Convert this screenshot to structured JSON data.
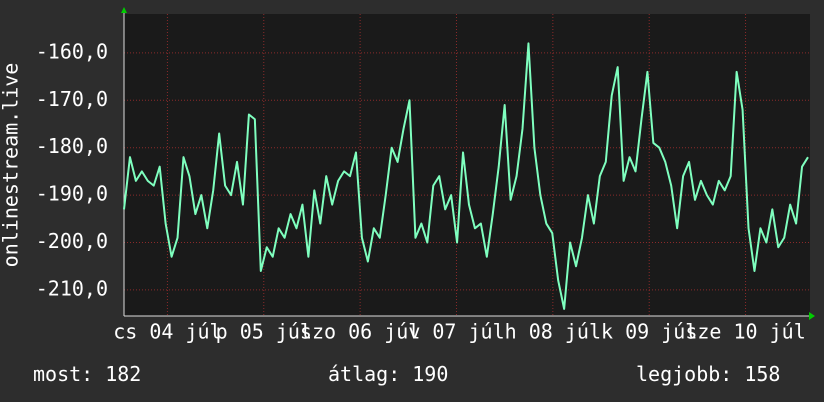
{
  "chart_data": {
    "type": "line",
    "y_label": "onlinestream.live",
    "color": "#7fffbf",
    "grid": true,
    "xlim": [
      0,
      115
    ],
    "xticks": [
      {
        "value": 7.3,
        "label": "cs 04 júl"
      },
      {
        "value": 23.5,
        "label": "p 05 júl"
      },
      {
        "value": 39.7,
        "label": "szo 06 júl"
      },
      {
        "value": 55.9,
        "label": "v 07 júl"
      },
      {
        "value": 72.1,
        "label": "h 08 júl"
      },
      {
        "value": 88.3,
        "label": "k 09 júl"
      },
      {
        "value": 104.5,
        "label": "sze 10 júl"
      }
    ],
    "ylim": [
      -215.5,
      -151.8
    ],
    "yticks": [
      {
        "value": -160,
        "label": "-160,0"
      },
      {
        "value": -170,
        "label": "-170,0"
      },
      {
        "value": -180,
        "label": "-180,0"
      },
      {
        "value": -190,
        "label": "-190,0"
      },
      {
        "value": -200,
        "label": "-200,0"
      },
      {
        "value": -210,
        "label": "-210,0"
      }
    ],
    "values": [
      -193,
      -182,
      -187,
      -185,
      -187,
      -188,
      -184,
      -196,
      -203,
      -199,
      -182,
      -186,
      -194,
      -190,
      -197,
      -189,
      -177,
      -188,
      -190,
      -183,
      -192,
      -173,
      -174,
      -206,
      -201,
      -203,
      -197,
      -199,
      -194,
      -197,
      -192,
      -203,
      -189,
      -196,
      -186,
      -192,
      -187,
      -185,
      -186,
      -181,
      -199,
      -204,
      -197,
      -199,
      -190,
      -180,
      -183,
      -176,
      -170,
      -199,
      -196,
      -200,
      -188,
      -186,
      -193,
      -190,
      -200,
      -181,
      -192,
      -197,
      -196,
      -203,
      -194,
      -184,
      -171,
      -191,
      -186,
      -176,
      -158,
      -180,
      -190,
      -196,
      -198,
      -208,
      -214,
      -200,
      -205,
      -199,
      -190,
      -196,
      -186,
      -183,
      -169,
      -163,
      -187,
      -182,
      -185,
      -174,
      -164,
      -179,
      -180,
      -183,
      -188,
      -197,
      -186,
      -183,
      -191,
      -187,
      -190,
      -192,
      -187,
      -189,
      -186,
      -164,
      -172,
      -197,
      -206,
      -197,
      -200,
      -193,
      -201,
      -199,
      -192,
      -196,
      -184,
      -182
    ],
    "stats": [
      {
        "label": "most:",
        "value": 182
      },
      {
        "label": "átlag:",
        "value": 190
      },
      {
        "label": "legjobb:",
        "value": 158
      }
    ]
  }
}
